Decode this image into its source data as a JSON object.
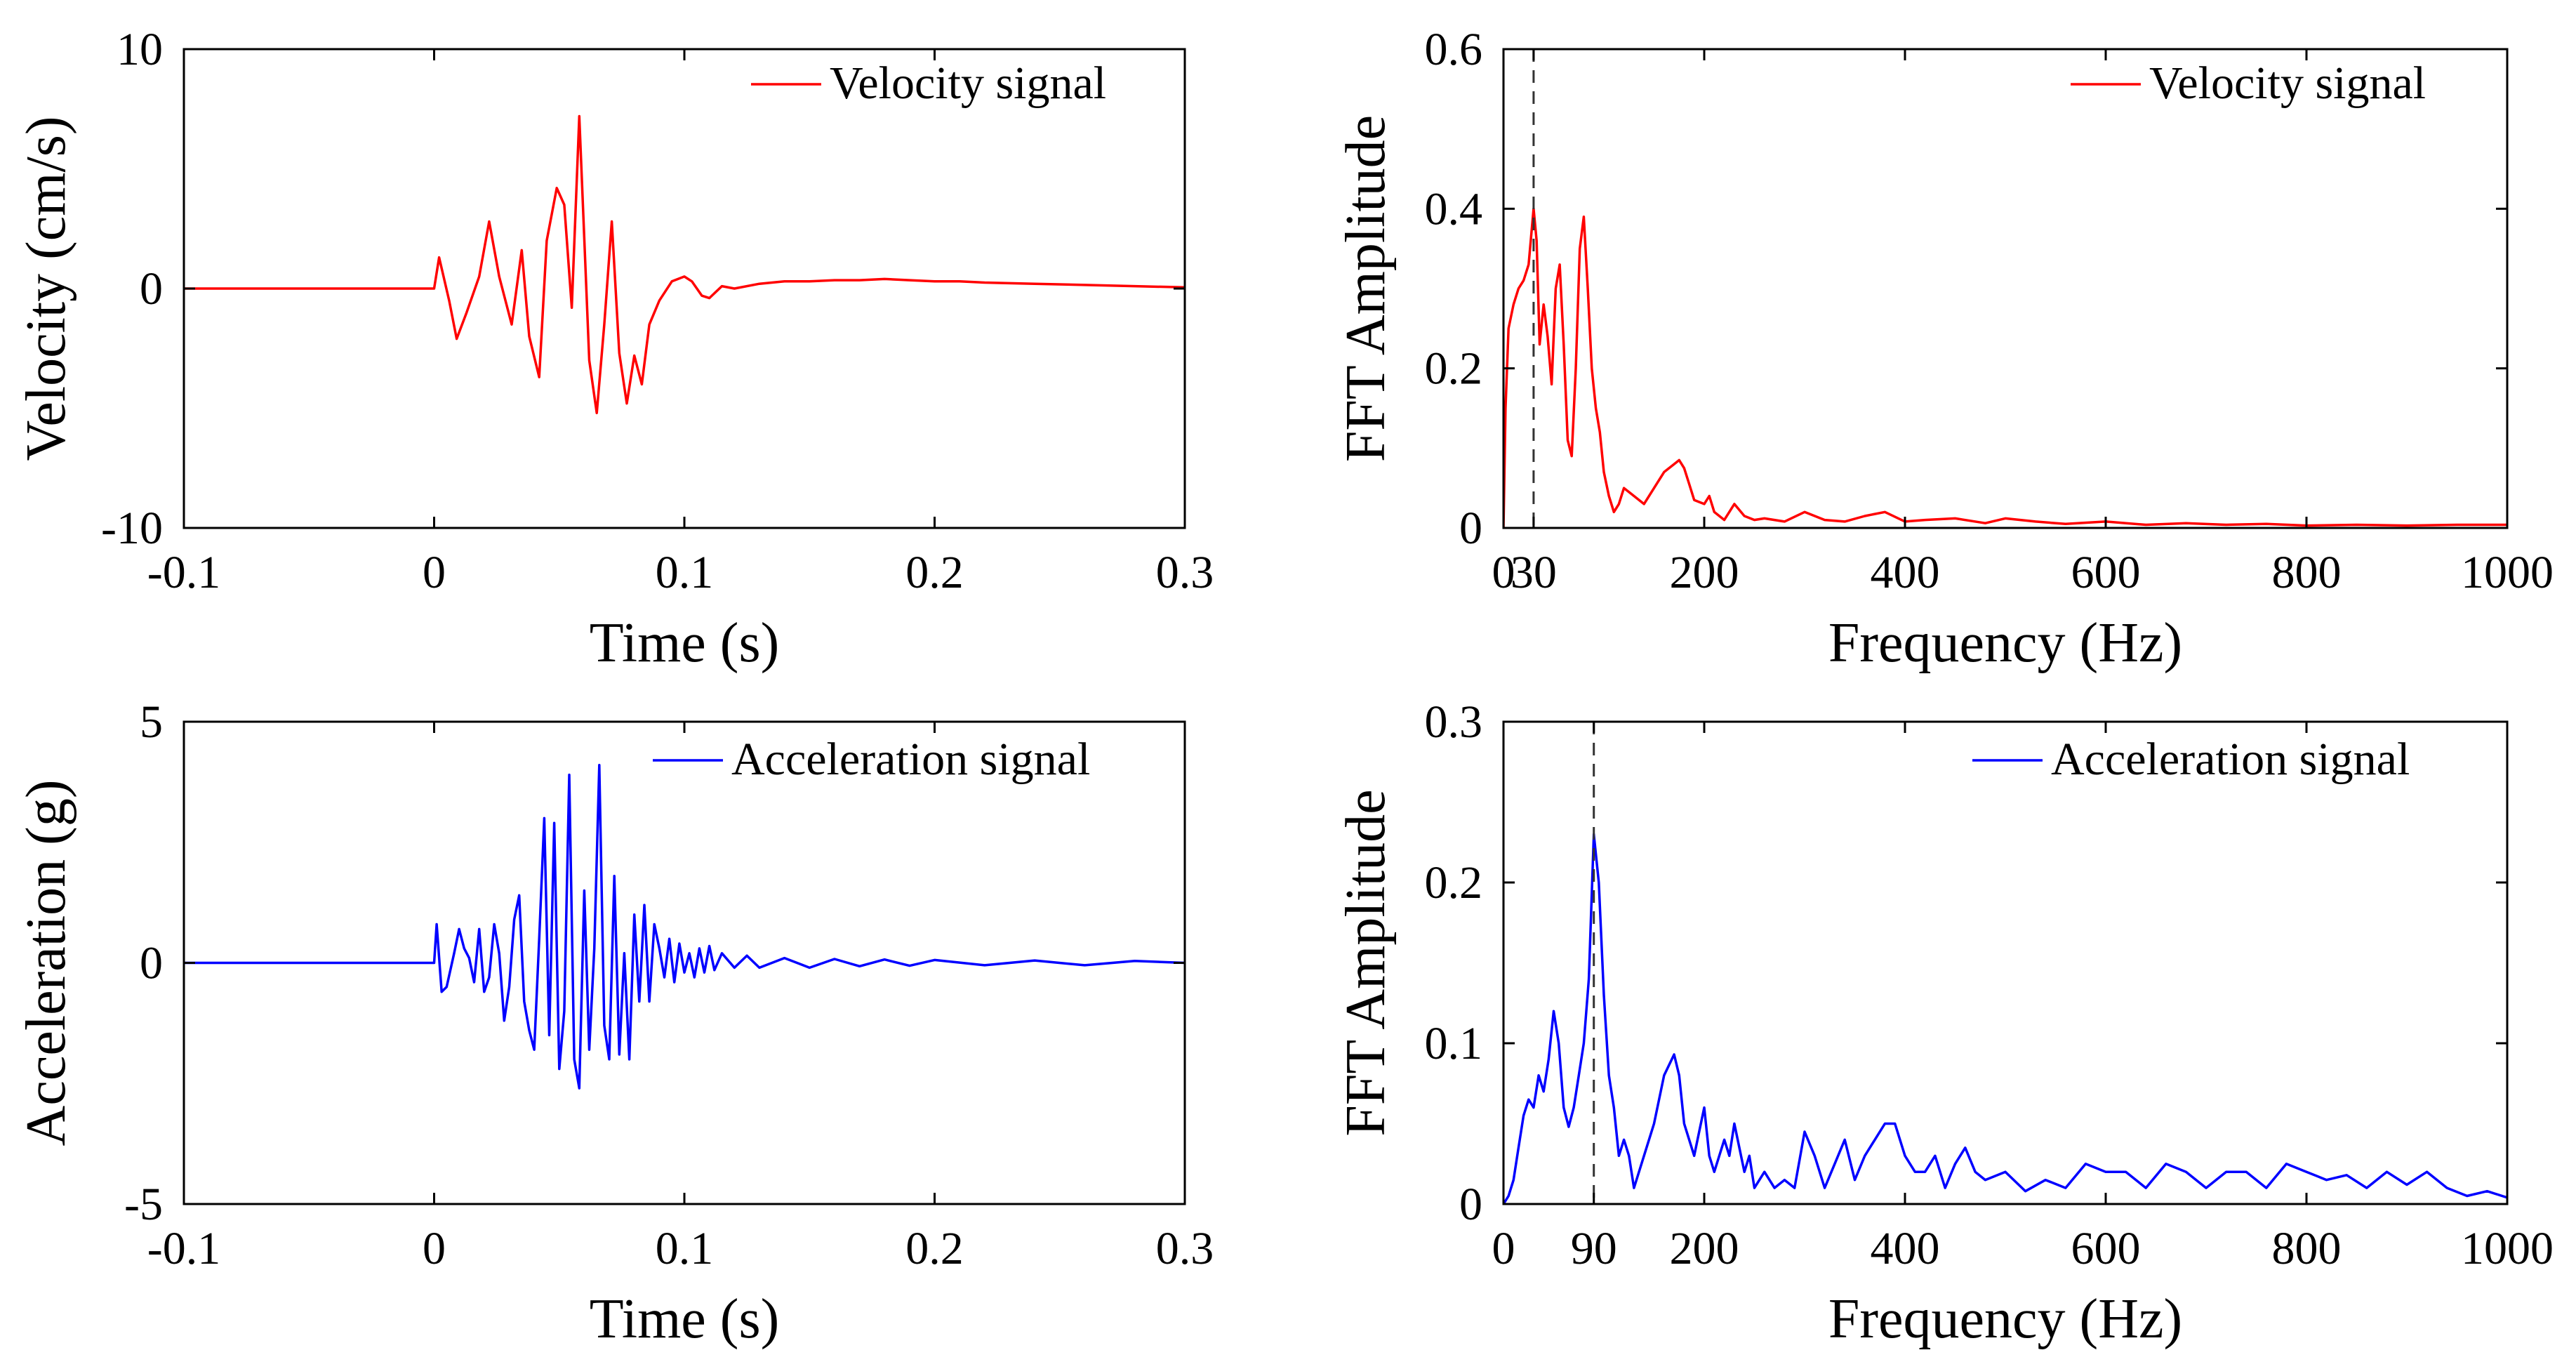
{
  "chart_data": [
    {
      "id": "vel",
      "type": "line",
      "title": "",
      "xlabel": "Time (s)",
      "ylabel": "Velocity (cm/s)",
      "xlim": [
        -0.1,
        0.3
      ],
      "ylim": [
        -10,
        10
      ],
      "xticks": [
        -0.1,
        0,
        0.1,
        0.2,
        0.3
      ],
      "xtick_labels": [
        "-0.1",
        "0",
        "0.1",
        "0.2",
        "0.3"
      ],
      "yticks": [
        -10,
        0,
        10
      ],
      "ytick_labels": [
        "-10",
        "0",
        "10"
      ],
      "legend_position": "top-right",
      "vline": null,
      "series": [
        {
          "name": "Velocity signal",
          "color": "#ff0000",
          "x": [
            -0.1,
            0,
            0.002,
            0.006,
            0.009,
            0.013,
            0.018,
            0.022,
            0.026,
            0.031,
            0.035,
            0.038,
            0.042,
            0.045,
            0.049,
            0.052,
            0.055,
            0.058,
            0.062,
            0.065,
            0.068,
            0.071,
            0.074,
            0.077,
            0.08,
            0.083,
            0.086,
            0.09,
            0.095,
            0.1,
            0.103,
            0.107,
            0.11,
            0.115,
            0.12,
            0.13,
            0.14,
            0.15,
            0.16,
            0.17,
            0.18,
            0.19,
            0.2,
            0.21,
            0.22,
            0.24,
            0.26,
            0.28,
            0.3
          ],
          "y": [
            0,
            0,
            1.3,
            -0.5,
            -2.1,
            -1.0,
            0.5,
            2.8,
            0.5,
            -1.5,
            1.6,
            -2.0,
            -3.7,
            2.0,
            4.2,
            3.5,
            -0.8,
            7.2,
            -3.0,
            -5.2,
            -1.5,
            2.8,
            -2.7,
            -4.8,
            -2.8,
            -4.0,
            -1.5,
            -0.5,
            0.3,
            0.5,
            0.3,
            -0.3,
            -0.4,
            0.1,
            0,
            0.2,
            0.3,
            0.3,
            0.35,
            0.35,
            0.4,
            0.35,
            0.3,
            0.3,
            0.25,
            0.2,
            0.15,
            0.1,
            0.05
          ]
        }
      ]
    },
    {
      "id": "vfft",
      "type": "line",
      "title": "",
      "xlabel": "Frequency (Hz)",
      "ylabel": "FFT Amplitude",
      "xlim": [
        0,
        1000
      ],
      "ylim": [
        0,
        0.6
      ],
      "xticks": [
        0,
        30,
        200,
        400,
        600,
        800,
        1000
      ],
      "xtick_labels": [
        "0",
        "30",
        "200",
        "400",
        "600",
        "800",
        "1000"
      ],
      "yticks": [
        0,
        0.2,
        0.4,
        0.6
      ],
      "ytick_labels": [
        "0",
        "0.2",
        "0.4",
        "0.6"
      ],
      "legend_position": "top-right",
      "vline": 30,
      "series": [
        {
          "name": "Velocity signal",
          "color": "#ff0000",
          "x": [
            0,
            2,
            5,
            10,
            15,
            20,
            25,
            30,
            33,
            36,
            40,
            44,
            48,
            52,
            56,
            60,
            64,
            68,
            72,
            76,
            80,
            84,
            88,
            92,
            96,
            100,
            105,
            110,
            115,
            120,
            125,
            130,
            140,
            150,
            160,
            170,
            175,
            180,
            185,
            190,
            200,
            205,
            210,
            220,
            230,
            240,
            250,
            260,
            280,
            300,
            320,
            340,
            360,
            380,
            400,
            420,
            450,
            480,
            500,
            530,
            560,
            600,
            640,
            680,
            720,
            760,
            800,
            850,
            900,
            950,
            1000
          ],
          "y": [
            0,
            0.15,
            0.25,
            0.28,
            0.3,
            0.31,
            0.33,
            0.4,
            0.36,
            0.23,
            0.28,
            0.24,
            0.18,
            0.3,
            0.33,
            0.23,
            0.11,
            0.09,
            0.2,
            0.35,
            0.39,
            0.3,
            0.2,
            0.15,
            0.12,
            0.07,
            0.04,
            0.02,
            0.03,
            0.05,
            0.045,
            0.04,
            0.03,
            0.05,
            0.07,
            0.08,
            0.085,
            0.075,
            0.055,
            0.035,
            0.03,
            0.04,
            0.02,
            0.01,
            0.03,
            0.015,
            0.01,
            0.012,
            0.008,
            0.02,
            0.01,
            0.008,
            0.015,
            0.02,
            0.008,
            0.01,
            0.012,
            0.006,
            0.012,
            0.008,
            0.005,
            0.008,
            0.004,
            0.006,
            0.004,
            0.005,
            0.003,
            0.004,
            0.003,
            0.004,
            0.004
          ]
        }
      ]
    },
    {
      "id": "acc",
      "type": "line",
      "title": "",
      "xlabel": "Time (s)",
      "ylabel": "Acceleration (g)",
      "xlim": [
        -0.1,
        0.3
      ],
      "ylim": [
        -5,
        5
      ],
      "xticks": [
        -0.1,
        0,
        0.1,
        0.2,
        0.3
      ],
      "xtick_labels": [
        "-0.1",
        "0",
        "0.1",
        "0.2",
        "0.3"
      ],
      "yticks": [
        -5,
        0,
        5
      ],
      "ytick_labels": [
        "-5",
        "0",
        "5"
      ],
      "legend_position": "top-right",
      "vline": null,
      "series": [
        {
          "name": "Acceleration signal",
          "color": "#0000ff",
          "x": [
            -0.1,
            0,
            0.001,
            0.003,
            0.005,
            0.008,
            0.01,
            0.012,
            0.014,
            0.016,
            0.018,
            0.02,
            0.022,
            0.024,
            0.026,
            0.028,
            0.03,
            0.032,
            0.034,
            0.036,
            0.038,
            0.04,
            0.042,
            0.044,
            0.046,
            0.048,
            0.05,
            0.052,
            0.054,
            0.056,
            0.058,
            0.06,
            0.062,
            0.064,
            0.066,
            0.068,
            0.07,
            0.072,
            0.074,
            0.076,
            0.078,
            0.08,
            0.082,
            0.084,
            0.086,
            0.088,
            0.09,
            0.092,
            0.094,
            0.096,
            0.098,
            0.1,
            0.102,
            0.104,
            0.106,
            0.108,
            0.11,
            0.112,
            0.115,
            0.12,
            0.125,
            0.13,
            0.14,
            0.15,
            0.16,
            0.17,
            0.18,
            0.19,
            0.2,
            0.22,
            0.24,
            0.26,
            0.28,
            0.3
          ],
          "y": [
            0,
            0,
            0.8,
            -0.6,
            -0.5,
            0.2,
            0.7,
            0.3,
            0.1,
            -0.4,
            0.7,
            -0.6,
            -0.3,
            0.8,
            0.2,
            -1.2,
            -0.5,
            0.9,
            1.4,
            -0.8,
            -1.4,
            -1.8,
            0.5,
            3.0,
            -1.5,
            2.9,
            -2.2,
            -1.0,
            3.9,
            -2.0,
            -2.6,
            1.5,
            -1.8,
            0.3,
            4.1,
            -1.3,
            -2.0,
            1.8,
            -1.9,
            0.2,
            -2.0,
            1.0,
            -0.8,
            1.2,
            -0.8,
            0.8,
            0.3,
            -0.3,
            0.5,
            -0.4,
            0.4,
            -0.2,
            0.2,
            -0.3,
            0.3,
            -0.2,
            0.35,
            -0.15,
            0.2,
            -0.1,
            0.15,
            -0.1,
            0.1,
            -0.1,
            0.08,
            -0.07,
            0.07,
            -0.06,
            0.06,
            -0.05,
            0.05,
            -0.05,
            0.04,
            0
          ]
        }
      ]
    },
    {
      "id": "afft",
      "type": "line",
      "title": "",
      "xlabel": "Frequency (Hz)",
      "ylabel": "FFT Amplitude",
      "xlim": [
        0,
        1000
      ],
      "ylim": [
        0,
        0.3
      ],
      "xticks": [
        0,
        90,
        200,
        400,
        600,
        800,
        1000
      ],
      "xtick_labels": [
        "0",
        "90",
        "200",
        "400",
        "600",
        "800",
        "1000"
      ],
      "yticks": [
        0,
        0.1,
        0.2,
        0.3
      ],
      "ytick_labels": [
        "0",
        "0.1",
        "0.2",
        "0.3"
      ],
      "legend_position": "top-right",
      "vline": 90,
      "series": [
        {
          "name": "Acceleration signal",
          "color": "#0000ff",
          "x": [
            0,
            5,
            10,
            15,
            20,
            25,
            30,
            35,
            40,
            45,
            50,
            55,
            60,
            65,
            70,
            75,
            80,
            85,
            90,
            95,
            100,
            105,
            110,
            115,
            120,
            125,
            130,
            140,
            150,
            160,
            170,
            175,
            180,
            190,
            195,
            200,
            205,
            210,
            220,
            225,
            230,
            240,
            245,
            250,
            260,
            270,
            280,
            290,
            300,
            310,
            320,
            330,
            340,
            350,
            360,
            370,
            380,
            390,
            400,
            410,
            420,
            430,
            440,
            450,
            460,
            470,
            480,
            500,
            520,
            540,
            560,
            580,
            600,
            620,
            640,
            660,
            680,
            700,
            720,
            740,
            760,
            780,
            800,
            820,
            840,
            860,
            880,
            900,
            920,
            940,
            960,
            980,
            1000
          ],
          "y": [
            0,
            0.005,
            0.015,
            0.035,
            0.055,
            0.065,
            0.06,
            0.08,
            0.07,
            0.09,
            0.12,
            0.1,
            0.06,
            0.048,
            0.06,
            0.08,
            0.1,
            0.14,
            0.23,
            0.2,
            0.13,
            0.08,
            0.06,
            0.03,
            0.04,
            0.03,
            0.01,
            0.03,
            0.05,
            0.08,
            0.093,
            0.08,
            0.05,
            0.03,
            0.045,
            0.06,
            0.03,
            0.02,
            0.04,
            0.03,
            0.05,
            0.02,
            0.03,
            0.01,
            0.02,
            0.01,
            0.015,
            0.01,
            0.045,
            0.03,
            0.01,
            0.025,
            0.04,
            0.015,
            0.03,
            0.04,
            0.05,
            0.05,
            0.03,
            0.02,
            0.02,
            0.03,
            0.01,
            0.025,
            0.035,
            0.02,
            0.015,
            0.02,
            0.008,
            0.015,
            0.01,
            0.025,
            0.02,
            0.02,
            0.01,
            0.025,
            0.02,
            0.01,
            0.02,
            0.02,
            0.01,
            0.025,
            0.02,
            0.015,
            0.018,
            0.01,
            0.02,
            0.012,
            0.02,
            0.01,
            0.005,
            0.008,
            0.004
          ]
        }
      ]
    }
  ]
}
